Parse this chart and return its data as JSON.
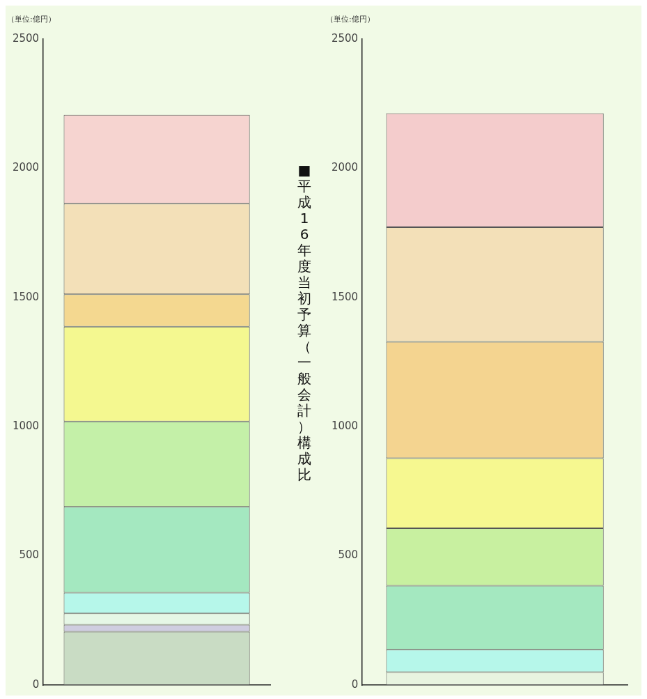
{
  "chart_data": [
    {
      "type": "bar",
      "ylabel": "（単位:億円）",
      "categories": [
        null
      ],
      "stacked": true,
      "ylim": [
        0,
        2500
      ],
      "yticks": [
        0,
        500,
        1000,
        1500,
        2000,
        2500
      ],
      "grid": false,
      "legend": false,
      "series": [
        {
          "color": "#c9dcc4",
          "values": [
            206
          ]
        },
        {
          "color": "#cfcde0",
          "values": [
            27
          ]
        },
        {
          "color": "#e6f7e6",
          "values": [
            44
          ]
        },
        {
          "color": "#b6f7ea",
          "values": [
            80
          ]
        },
        {
          "color": "#a4e8c0",
          "values": [
            333
          ]
        },
        {
          "color": "#c4f0a8",
          "values": [
            330
          ]
        },
        {
          "color": "#f4f890",
          "values": [
            367
          ]
        },
        {
          "color": "#f4d890",
          "values": [
            125
          ]
        },
        {
          "color": "#f3e0b8",
          "values": [
            351
          ]
        },
        {
          "color": "#f6d4d0",
          "values": [
            344
          ]
        }
      ]
    },
    {
      "type": "bar",
      "title": "■平成16年度当初予算（一般会計）構成比",
      "ylabel": "（単位:億円）",
      "categories": [
        null
      ],
      "stacked": true,
      "ylim": [
        0,
        2500
      ],
      "yticks": [
        0,
        500,
        1000,
        1500,
        2000,
        2500
      ],
      "grid": false,
      "legend": false,
      "series": [
        {
          "color": "#e8f4e0",
          "values": [
            50
          ]
        },
        {
          "color": "#b6f7ea",
          "values": [
            87
          ]
        },
        {
          "color": "#a4e8c0",
          "values": [
            247
          ]
        },
        {
          "color": "#c8f0a0",
          "values": [
            223
          ]
        },
        {
          "color": "#f6f890",
          "values": [
            271
          ]
        },
        {
          "color": "#f4d490",
          "values": [
            450
          ]
        },
        {
          "color": "#f3e0b8",
          "values": [
            444
          ]
        },
        {
          "color": "#f4cccc",
          "values": [
            441
          ]
        }
      ]
    }
  ]
}
